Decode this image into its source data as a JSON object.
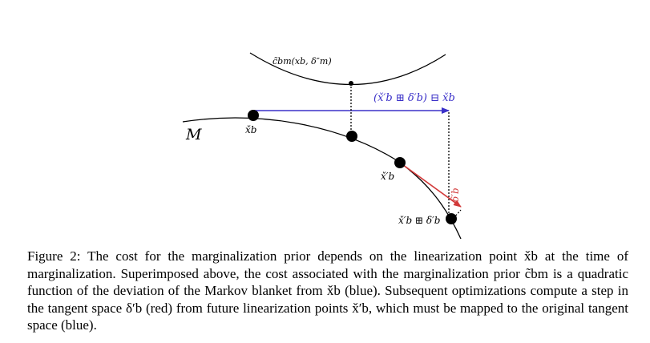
{
  "figure": {
    "cost_label": "c̃bm(xb, δ″m)",
    "map_label": "(x̌′b ⊞ δ′b) ⊟ x̌b",
    "manifold_label": "M",
    "xb_label": "x̌b",
    "xb_prime_label": "x̌′b",
    "delta_label": "δ′b",
    "retract_label": "x̌′b ⊞ δ′b",
    "colors": {
      "blue": "#3a30c8",
      "red": "#d23a3a",
      "black": "#000000"
    }
  },
  "caption": {
    "prefix": "Figure 2:",
    "text": "The cost for the marginalization prior depends on the linearization point x̌b at the time of marginalization. Superimposed above, the cost associated with the marginalization prior c̃bm is a quadratic function of the deviation of the Markov blanket from x̌b (blue). Subsequent optimizations compute a step in the tangent space δ′b (red) from future linearization points x̌′b, which must be mapped to the original tangent space (blue)."
  }
}
